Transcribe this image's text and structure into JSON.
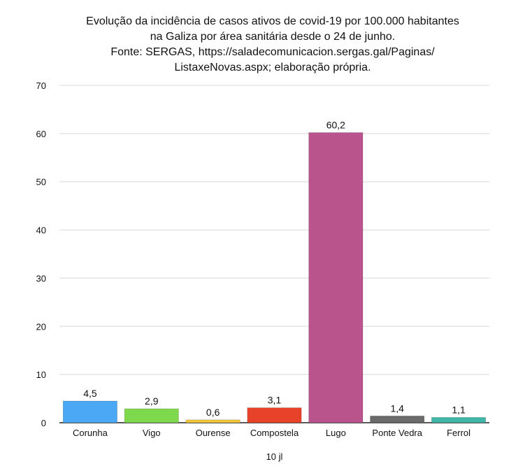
{
  "chart_data": {
    "type": "bar",
    "title_lines": [
      "Evolução da incidência de casos ativos de covid-19 por 100.000 habitantes",
      "na Galiza por área sanitária desde o 24 de junho.",
      "Fonte: SERGAS, https://saladecomunicacion.sergas.gal/Paginas/",
      "ListaxeNovas.aspx; elaboração própria."
    ],
    "categories": [
      "Corunha",
      "Vigo",
      "Ourense",
      "Compostela",
      "Lugo",
      "Ponte Vedra",
      "Ferrol"
    ],
    "values": [
      4.5,
      2.9,
      0.6,
      3.1,
      60.2,
      1.4,
      1.1
    ],
    "value_labels": [
      "4,5",
      "2,9",
      "0,6",
      "3,1",
      "60,2",
      "1,4",
      "1,1"
    ],
    "colors": [
      "#4aa8f4",
      "#7fd94c",
      "#f2c53a",
      "#e8432a",
      "#b9548c",
      "#6a6a6a",
      "#3fb6a8"
    ],
    "xlabel": "10 jl",
    "ylabel": "",
    "ylim": [
      0,
      70
    ],
    "yticks": [
      0,
      10,
      20,
      30,
      40,
      50,
      60,
      70
    ],
    "grid": true,
    "legend": "none"
  }
}
